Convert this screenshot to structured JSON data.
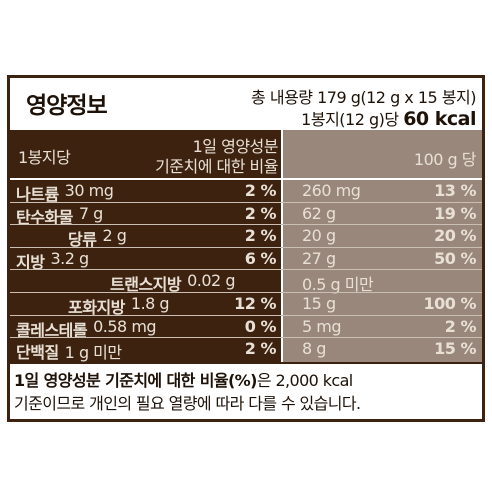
{
  "title": "영양정보",
  "total_content": "총 내용량 179 g(12 g x 15 봉지)",
  "per_serving_prefix": "1봉지(12 g)당",
  "calories": "60 kcal",
  "header": {
    "per_serving": "1봉지당",
    "daily_value_line1": "1일 영양성분",
    "daily_value_line2": "기준치에 대한 비율",
    "per_100g": "100 g 당"
  },
  "rows": [
    {
      "name": "나트륨",
      "amount": "30 mg",
      "dv": "2 %",
      "amount_100g": "260 mg",
      "dv_100g": "13 %"
    },
    {
      "name": "탄수화물",
      "amount": "7 g",
      "dv": "2 %",
      "amount_100g": "62 g",
      "dv_100g": "19 %"
    },
    {
      "name": "당류",
      "amount": "2 g",
      "dv": "2 %",
      "amount_100g": "20 g",
      "dv_100g": "20 %"
    },
    {
      "name": "지방",
      "amount": "3.2 g",
      "dv": "6 %",
      "amount_100g": "27 g",
      "dv_100g": "50 %"
    },
    {
      "name": "트랜스지방",
      "amount": "0.02 g",
      "dv": "",
      "amount_100g": "0.5 g 미만",
      "dv_100g": ""
    },
    {
      "name": "포화지방",
      "amount": "1.8 g",
      "dv": "12 %",
      "amount_100g": "15 g",
      "dv_100g": "100 %"
    },
    {
      "name": "콜레스테롤",
      "amount": "0.58 mg",
      "dv": "0 %",
      "amount_100g": "5 mg",
      "dv_100g": "2 %"
    },
    {
      "name": "단백질",
      "amount": "1 g 미만",
      "dv": "2 %",
      "amount_100g": "8 g",
      "dv_100g": "15 %"
    }
  ],
  "footnote": {
    "bold": "1일 영양성분 기준치에 대한 비율(%)",
    "rest": "은 2,000 kcal",
    "line2": "기준이므로 개인의 필요 열량에 따라 다를 수 있습니다."
  }
}
